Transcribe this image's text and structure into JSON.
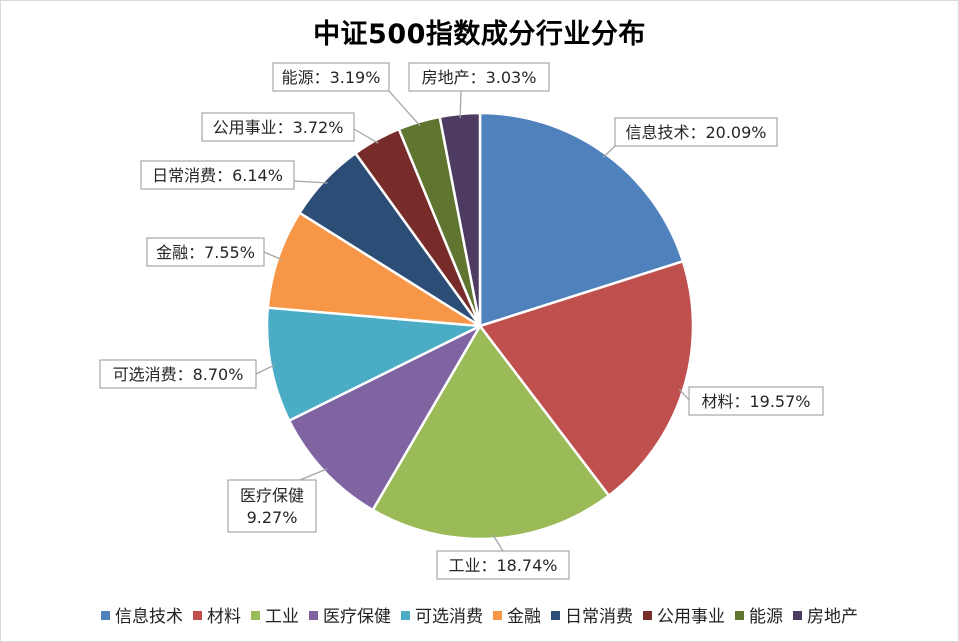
{
  "chart_data": {
    "type": "pie",
    "title": "中证500指数成分行业分布",
    "slices": [
      {
        "name": "信息技术",
        "value": 20.09,
        "color": "#4F81BD",
        "label_lines": [
          "信息技术：20.09%"
        ]
      },
      {
        "name": "材料",
        "value": 19.57,
        "color": "#C0504D",
        "label_lines": [
          "材料：19.57%"
        ]
      },
      {
        "name": "工业",
        "value": 18.74,
        "color": "#9BBB59",
        "label_lines": [
          "工业：18.74%"
        ]
      },
      {
        "name": "医疗保健",
        "value": 9.27,
        "color": "#8064A2",
        "label_lines": [
          "医疗保健",
          "9.27%"
        ]
      },
      {
        "name": "可选消费",
        "value": 8.7,
        "color": "#4BACC6",
        "label_lines": [
          "可选消费：8.70%"
        ]
      },
      {
        "name": "金融",
        "value": 7.55,
        "color": "#F79646",
        "label_lines": [
          "金融：7.55%"
        ]
      },
      {
        "name": "日常消费",
        "value": 6.14,
        "color": "#2C4D75",
        "label_lines": [
          "日常消费：6.14%"
        ]
      },
      {
        "name": "公用事业",
        "value": 3.72,
        "color": "#772C2A",
        "label_lines": [
          "公用事业：3.72%"
        ]
      },
      {
        "name": "能源",
        "value": 3.19,
        "color": "#5F7530",
        "label_lines": [
          "能源：3.19%"
        ]
      },
      {
        "name": "房地产",
        "value": 3.03,
        "color": "#4D3B62",
        "label_lines": [
          "房地产：3.03%"
        ]
      }
    ],
    "legend_position": "bottom",
    "start_angle": "12 o'clock",
    "direction": "clockwise"
  }
}
